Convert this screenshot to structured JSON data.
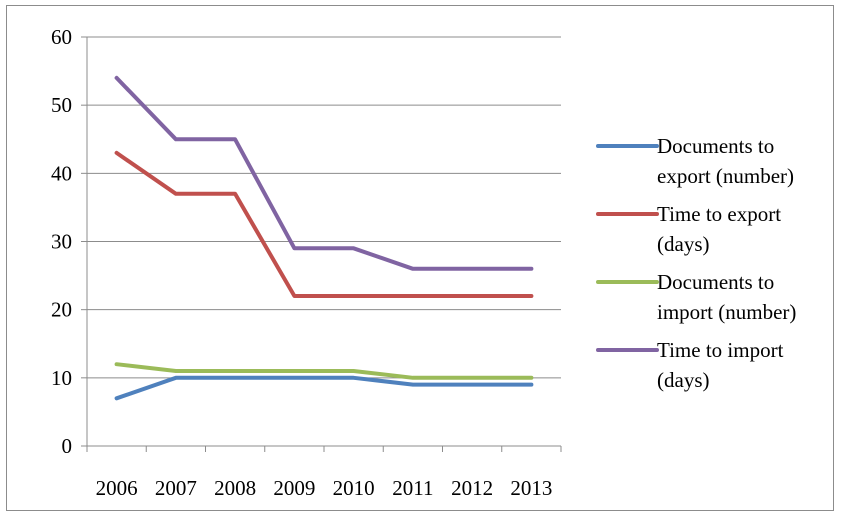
{
  "chart_data": {
    "type": "line",
    "title": "",
    "xlabel": "",
    "ylabel": "",
    "categories": [
      "2006",
      "2007",
      "2008",
      "2009",
      "2010",
      "2011",
      "2012",
      "2013"
    ],
    "ylim": [
      0,
      60
    ],
    "yticks": [
      "0",
      "10",
      "20",
      "30",
      "40",
      "50",
      "60"
    ],
    "grid": true,
    "legend_position": "right",
    "series": [
      {
        "name": "Documents to export (number)",
        "legend_lines": [
          "Documents to",
          "export (number)"
        ],
        "color": "#4f81bd",
        "values": [
          7,
          10,
          10,
          10,
          10,
          9,
          9,
          9
        ]
      },
      {
        "name": "Time to export (days)",
        "legend_lines": [
          "Time to export",
          "(days)"
        ],
        "color": "#c0504d",
        "values": [
          43,
          37,
          37,
          22,
          22,
          22,
          22,
          22
        ]
      },
      {
        "name": "Documents to import (number)",
        "legend_lines": [
          "Documents to",
          "import (number)"
        ],
        "color": "#9bbb59",
        "values": [
          12,
          11,
          11,
          11,
          11,
          10,
          10,
          10
        ]
      },
      {
        "name": "Time to import (days)",
        "legend_lines": [
          "Time to import",
          "(days)"
        ],
        "color": "#8064a2",
        "values": [
          54,
          45,
          45,
          29,
          29,
          26,
          26,
          26
        ]
      }
    ]
  }
}
